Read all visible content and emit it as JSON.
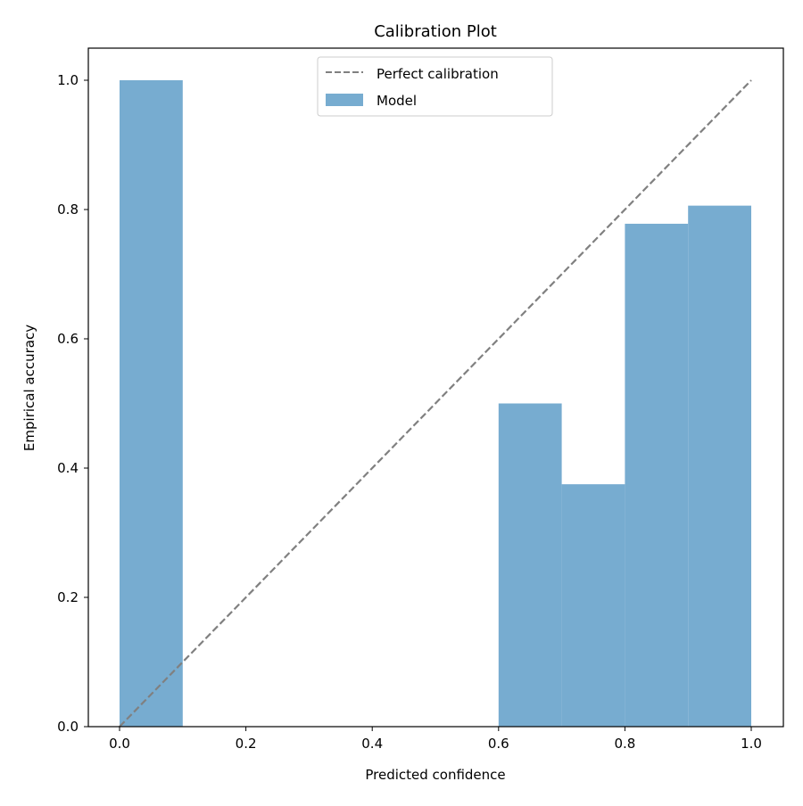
{
  "chart_data": {
    "type": "bar",
    "title": "Calibration Plot",
    "xlabel": "Predicted confidence",
    "ylabel": "Empirical accuracy",
    "xlim": [
      -0.05,
      1.05
    ],
    "ylim": [
      0.0,
      1.05
    ],
    "xticks": [
      "0.0",
      "0.2",
      "0.4",
      "0.6",
      "0.8",
      "1.0"
    ],
    "yticks": [
      "0.0",
      "0.2",
      "0.4",
      "0.6",
      "0.8",
      "1.0"
    ],
    "grid": false,
    "legend": {
      "placement": "top-center",
      "entries": [
        "Perfect calibration",
        "Model"
      ]
    },
    "series": [
      {
        "name": "Model",
        "kind": "bar",
        "color": "#77acd0",
        "bins": [
          [
            0.0,
            0.1
          ],
          [
            0.6,
            0.7
          ],
          [
            0.7,
            0.8
          ],
          [
            0.8,
            0.9
          ],
          [
            0.9,
            1.0
          ]
        ],
        "values": [
          1.0,
          0.5,
          0.375,
          0.778,
          0.806
        ]
      },
      {
        "name": "Perfect calibration",
        "kind": "line",
        "style": "dashed",
        "color": "#808080",
        "x": [
          0,
          1
        ],
        "y": [
          0,
          1
        ]
      }
    ]
  }
}
